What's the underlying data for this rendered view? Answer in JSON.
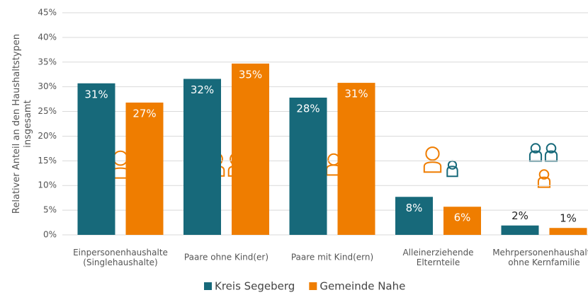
{
  "chart_data": {
    "type": "bar",
    "y_label": "Relativer Anteil an den Haushaltstypen\ninsgesamt",
    "categories": [
      "Einpersonenhaushalte\n(Singlehaushalte)",
      "Paare ohne Kind(er)",
      "Paare mit Kind(ern)",
      "Alleinerziehende\nElternteile",
      "Mehrpersonenhaushalte\nohne Kernfamilie"
    ],
    "series": [
      {
        "name": "Kreis Segeberg",
        "color": "#17697a",
        "values": [
          30.7,
          31.6,
          27.8,
          7.7,
          1.9
        ],
        "value_labels": [
          "31%",
          "32%",
          "28%",
          "8%",
          "2%"
        ]
      },
      {
        "name": "Gemeinde Nahe",
        "color": "#ef7d00",
        "values": [
          26.8,
          34.7,
          30.8,
          5.7,
          1.4
        ],
        "value_labels": [
          "27%",
          "35%",
          "31%",
          "6%",
          "1%"
        ]
      }
    ],
    "ylim": [
      0,
      45
    ],
    "yticks": [
      {
        "value": 0,
        "label": "0%"
      },
      {
        "value": 5,
        "label": "5%"
      },
      {
        "value": 10,
        "label": "10%"
      },
      {
        "value": 15,
        "label": "15%"
      },
      {
        "value": 20,
        "label": "20%"
      },
      {
        "value": 25,
        "label": "25%"
      },
      {
        "value": 30,
        "label": "30%"
      },
      {
        "value": 35,
        "label": "35%"
      },
      {
        "value": 40,
        "label": "40%"
      },
      {
        "value": 45,
        "label": "45%"
      }
    ],
    "grid": true,
    "legend": "bottom"
  }
}
